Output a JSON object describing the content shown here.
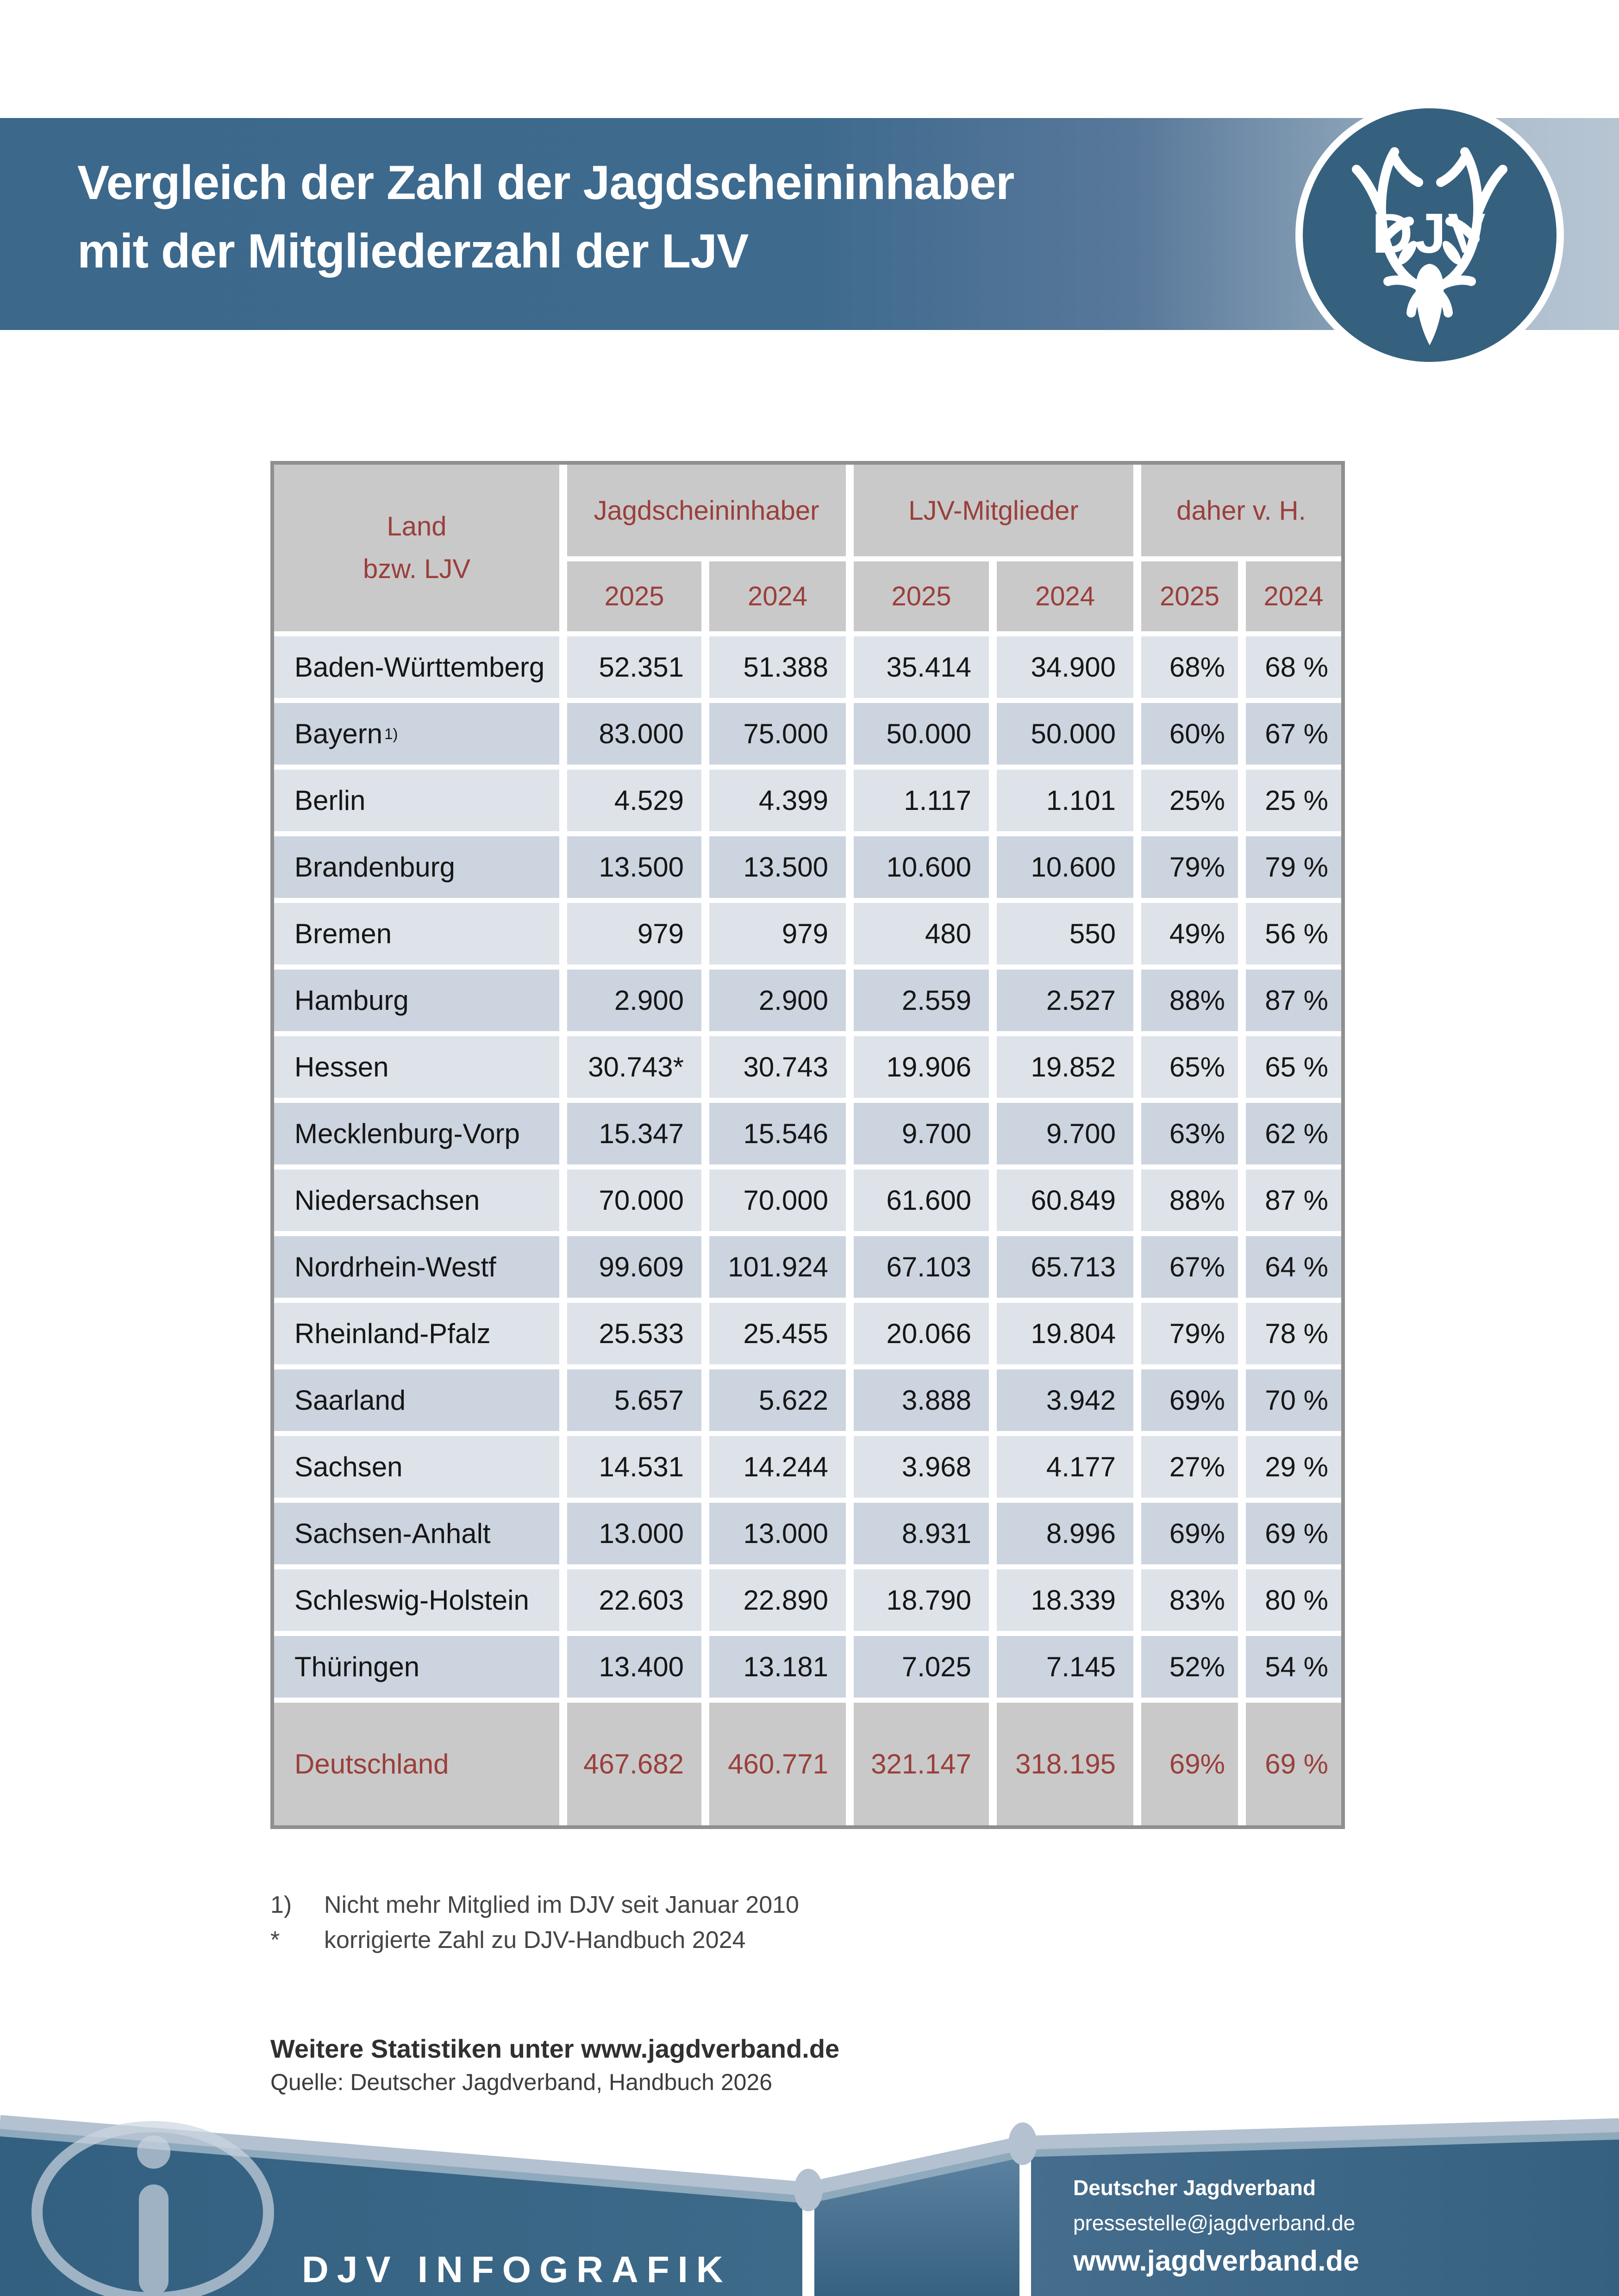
{
  "header": {
    "title_line1": "Vergleich der Zahl der Jagdscheininhaber",
    "title_line2": "mit der Mitgliederzahl der LJV",
    "logo_text": "DJV"
  },
  "table": {
    "land_header_line1": "Land",
    "land_header_line2": "bzw. LJV",
    "groups": [
      "Jagdscheininhaber",
      "LJV-Mitglieder",
      "daher v. H."
    ],
    "year_headers": [
      "2025",
      "2024",
      "2025",
      "2024",
      "2025",
      "2024"
    ],
    "rows": [
      {
        "land": "Baden-Württemberg",
        "land_sup": "",
        "values": [
          "52.351",
          "51.388",
          "35.414",
          "34.900",
          "68%",
          "68 %"
        ]
      },
      {
        "land": "Bayern",
        "land_sup": "1)",
        "values": [
          "83.000",
          "75.000",
          "50.000",
          "50.000",
          "60%",
          "67 %"
        ]
      },
      {
        "land": "Berlin",
        "land_sup": "",
        "values": [
          "4.529",
          "4.399",
          "1.117",
          "1.101",
          "25%",
          "25 %"
        ]
      },
      {
        "land": "Brandenburg",
        "land_sup": "",
        "values": [
          "13.500",
          "13.500",
          "10.600",
          "10.600",
          "79%",
          "79 %"
        ]
      },
      {
        "land": "Bremen",
        "land_sup": "",
        "values": [
          "979",
          "979",
          "480",
          "550",
          "49%",
          "56 %"
        ]
      },
      {
        "land": "Hamburg",
        "land_sup": "",
        "values": [
          "2.900",
          "2.900",
          "2.559",
          "2.527",
          "88%",
          "87 %"
        ]
      },
      {
        "land": "Hessen",
        "land_sup": "",
        "values": [
          "30.743*",
          "30.743",
          "19.906",
          "19.852",
          "65%",
          "65 %"
        ]
      },
      {
        "land": "Mecklenburg-Vorp",
        "land_sup": "",
        "values": [
          "15.347",
          "15.546",
          "9.700",
          "9.700",
          "63%",
          "62 %"
        ]
      },
      {
        "land": "Niedersachsen",
        "land_sup": "",
        "values": [
          "70.000",
          "70.000",
          "61.600",
          "60.849",
          "88%",
          "87 %"
        ]
      },
      {
        "land": "Nordrhein-Westf",
        "land_sup": "",
        "values": [
          "99.609",
          "101.924",
          "67.103",
          "65.713",
          "67%",
          "64 %"
        ]
      },
      {
        "land": "Rheinland-Pfalz",
        "land_sup": "",
        "values": [
          "25.533",
          "25.455",
          "20.066",
          "19.804",
          "79%",
          "78 %"
        ]
      },
      {
        "land": "Saarland",
        "land_sup": "",
        "values": [
          "5.657",
          "5.622",
          "3.888",
          "3.942",
          "69%",
          "70 %"
        ]
      },
      {
        "land": "Sachsen",
        "land_sup": "",
        "values": [
          "14.531",
          "14.244",
          "3.968",
          "4.177",
          "27%",
          "29 %"
        ]
      },
      {
        "land": "Sachsen-Anhalt",
        "land_sup": "",
        "values": [
          "13.000",
          "13.000",
          "8.931",
          "8.996",
          "69%",
          "69 %"
        ]
      },
      {
        "land": "Schleswig-Holstein",
        "land_sup": "",
        "values": [
          "22.603",
          "22.890",
          "18.790",
          "18.339",
          "83%",
          "80 %"
        ]
      },
      {
        "land": "Thüringen",
        "land_sup": "",
        "values": [
          "13.400",
          "13.181",
          "7.025",
          "7.145",
          "52%",
          "54 %"
        ]
      }
    ],
    "total_row": {
      "land": "Deutschland",
      "values": [
        "467.682",
        "460.771",
        "321.147",
        "318.195",
        "69%",
        "69 %"
      ]
    }
  },
  "footnotes": [
    {
      "marker": "1)",
      "text": "Nicht mehr Mitglied im DJV seit Januar 2010"
    },
    {
      "marker": "*",
      "text": "korrigierte Zahl zu DJV-Handbuch 2024"
    }
  ],
  "more_statistics": "Weitere Statistiken unter www.jagdverband.de",
  "source": "Quelle: Deutscher Jagdverband, Handbuch 2026",
  "footer": {
    "brand": "DJV INFOGRAFIK",
    "org": "Deutscher Jagdverband",
    "email": "pressestelle@jagdverband.de",
    "website": "www.jagdverband.de"
  },
  "colors": {
    "band_dark": "#3c688c",
    "band_light": "#b7c5d3",
    "logo_fill": "#35617f",
    "header_gray": "#c9c9c9",
    "accent_red": "#9a3f3b",
    "row_light": "#dee3e9",
    "row_dark": "#ccd4df",
    "table_border": "#8f8f8f",
    "footer_fill": "#336080",
    "footer_line": "#b3c1d1"
  },
  "chart_data": {
    "type": "table",
    "title": "Vergleich der Zahl der Jagdscheininhaber mit der Mitgliederzahl der LJV",
    "columns": [
      "Land bzw. LJV",
      "Jagdscheininhaber 2025",
      "Jagdscheininhaber 2024",
      "LJV-Mitglieder 2025",
      "LJV-Mitglieder 2024",
      "daher v. H. 2025",
      "daher v. H. 2024"
    ],
    "rows": [
      [
        "Baden-Württemberg",
        "52.351",
        "51.388",
        "35.414",
        "34.900",
        "68%",
        "68 %"
      ],
      [
        "Bayern 1)",
        "83.000",
        "75.000",
        "50.000",
        "50.000",
        "60%",
        "67 %"
      ],
      [
        "Berlin",
        "4.529",
        "4.399",
        "1.117",
        "1.101",
        "25%",
        "25 %"
      ],
      [
        "Brandenburg",
        "13.500",
        "13.500",
        "10.600",
        "10.600",
        "79%",
        "79 %"
      ],
      [
        "Bremen",
        "979",
        "979",
        "480",
        "550",
        "49%",
        "56 %"
      ],
      [
        "Hamburg",
        "2.900",
        "2.900",
        "2.559",
        "2.527",
        "88%",
        "87 %"
      ],
      [
        "Hessen",
        "30.743*",
        "30.743",
        "19.906",
        "19.852",
        "65%",
        "65 %"
      ],
      [
        "Mecklenburg-Vorp",
        "15.347",
        "15.546",
        "9.700",
        "9.700",
        "63%",
        "62 %"
      ],
      [
        "Niedersachsen",
        "70.000",
        "70.000",
        "61.600",
        "60.849",
        "88%",
        "87 %"
      ],
      [
        "Nordrhein-Westf",
        "99.609",
        "101.924",
        "67.103",
        "65.713",
        "67%",
        "64 %"
      ],
      [
        "Rheinland-Pfalz",
        "25.533",
        "25.455",
        "20.066",
        "19.804",
        "79%",
        "78 %"
      ],
      [
        "Saarland",
        "5.657",
        "5.622",
        "3.888",
        "3.942",
        "69%",
        "70 %"
      ],
      [
        "Sachsen",
        "14.531",
        "14.244",
        "3.968",
        "4.177",
        "27%",
        "29 %"
      ],
      [
        "Sachsen-Anhalt",
        "13.000",
        "13.000",
        "8.931",
        "8.996",
        "69%",
        "69 %"
      ],
      [
        "Schleswig-Holstein",
        "22.603",
        "22.890",
        "18.790",
        "18.339",
        "83%",
        "80 %"
      ],
      [
        "Thüringen",
        "13.400",
        "13.181",
        "7.025",
        "7.145",
        "52%",
        "54 %"
      ],
      [
        "Deutschland",
        "467.682",
        "460.771",
        "321.147",
        "318.195",
        "69%",
        "69 %"
      ]
    ]
  }
}
